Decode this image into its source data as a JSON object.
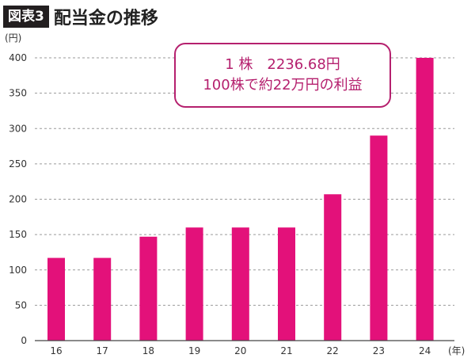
{
  "header": {
    "badge": "図表3",
    "title": "配当金の推移"
  },
  "annotation": {
    "line1": "1 株　2236.68円",
    "line2": "100株で約22万円の利益"
  },
  "colors": {
    "bar": "#e3117a",
    "accent": "#b5206e"
  },
  "chart_data": {
    "type": "bar",
    "categories": [
      "16",
      "17",
      "18",
      "19",
      "20",
      "21",
      "22",
      "23",
      "24"
    ],
    "values": [
      117,
      117,
      147,
      160,
      160,
      160,
      207,
      290,
      400
    ],
    "ylim": [
      0,
      400
    ],
    "yticks": [
      0,
      50,
      100,
      150,
      200,
      250,
      300,
      350,
      400
    ],
    "yunit": "(円)",
    "xunit": "(年)",
    "grid": true
  }
}
